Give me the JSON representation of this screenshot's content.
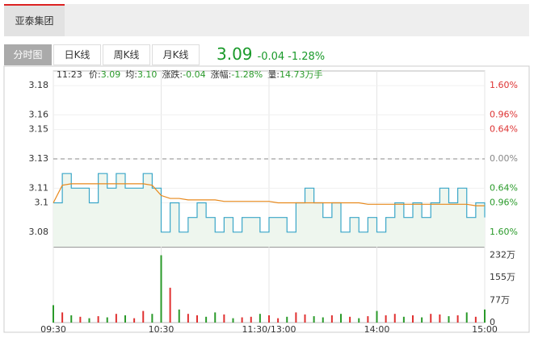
{
  "header": {
    "stock_tab": "亚泰集团",
    "view_tabs": [
      "分时图",
      "日K线",
      "周K线",
      "月K线"
    ],
    "price": "3.09",
    "change": "-0.04",
    "change_pct": "-1.28%"
  },
  "info": {
    "time": "11:23",
    "items": [
      {
        "label": "价:",
        "value": "3.09"
      },
      {
        "label": "均:",
        "value": "3.10"
      },
      {
        "label": "涨跌:",
        "value": "-0.04"
      },
      {
        "label": "涨幅:",
        "value": "-1.28%"
      },
      {
        "label": "量:",
        "value": "14.73万手"
      }
    ]
  },
  "chart_data": [
    {
      "type": "line",
      "xlim": [
        0,
        240
      ],
      "x": [
        0,
        5,
        10,
        15,
        20,
        25,
        30,
        35,
        40,
        45,
        50,
        55,
        60,
        65,
        70,
        75,
        80,
        85,
        90,
        95,
        100,
        105,
        110,
        115,
        120,
        125,
        130,
        135,
        140,
        145,
        150,
        155,
        160,
        165,
        170,
        175,
        180,
        185,
        190,
        195,
        200,
        205,
        210,
        215,
        220,
        225,
        230,
        235,
        240
      ],
      "series": [
        {
          "name": "价",
          "color": "#3aa6c8",
          "values": [
            3.1,
            3.12,
            3.11,
            3.11,
            3.1,
            3.12,
            3.11,
            3.12,
            3.11,
            3.11,
            3.12,
            3.11,
            3.08,
            3.1,
            3.08,
            3.09,
            3.1,
            3.09,
            3.08,
            3.09,
            3.08,
            3.09,
            3.09,
            3.08,
            3.09,
            3.09,
            3.08,
            3.1,
            3.11,
            3.1,
            3.09,
            3.1,
            3.08,
            3.09,
            3.08,
            3.09,
            3.08,
            3.09,
            3.1,
            3.09,
            3.1,
            3.09,
            3.1,
            3.11,
            3.1,
            3.11,
            3.09,
            3.1,
            3.09
          ]
        },
        {
          "name": "均",
          "color": "#e8891c",
          "values": [
            3.1,
            3.112,
            3.113,
            3.113,
            3.113,
            3.113,
            3.113,
            3.113,
            3.113,
            3.113,
            3.113,
            3.112,
            3.105,
            3.103,
            3.103,
            3.102,
            3.102,
            3.102,
            3.102,
            3.101,
            3.101,
            3.101,
            3.101,
            3.101,
            3.101,
            3.1,
            3.1,
            3.1,
            3.1,
            3.1,
            3.1,
            3.1,
            3.1,
            3.1,
            3.1,
            3.099,
            3.099,
            3.099,
            3.099,
            3.099,
            3.099,
            3.099,
            3.099,
            3.099,
            3.099,
            3.099,
            3.099,
            3.098,
            3.098
          ]
        }
      ],
      "ylim": [
        3.07,
        3.19
      ],
      "yticks": [
        3.18,
        3.16,
        3.15,
        3.13,
        3.11,
        3.1,
        3.08
      ],
      "y2lim": [
        -1.917,
        1.917
      ],
      "y2ticks": [
        {
          "value": 1.6,
          "label": "1.60%"
        },
        {
          "value": 0.96,
          "label": "0.96%"
        },
        {
          "value": 0.64,
          "label": "0.64%"
        },
        {
          "value": 0,
          "label": "0.00%"
        },
        {
          "value": -0.64,
          "label": "0.64%"
        },
        {
          "value": -0.96,
          "label": "0.96%"
        },
        {
          "value": -1.6,
          "label": "1.60%"
        }
      ],
      "grid": true
    },
    {
      "type": "bar",
      "xlim": [
        0,
        240
      ],
      "xticks": [
        {
          "value": 0,
          "label": "09:30"
        },
        {
          "value": 60,
          "label": "10:30"
        },
        {
          "value": 120,
          "label": "11:30/13:00"
        },
        {
          "value": 180,
          "label": "14:00"
        },
        {
          "value": 240,
          "label": "15:00"
        }
      ],
      "values": [
        60,
        35,
        25,
        20,
        15,
        22,
        18,
        30,
        25,
        15,
        40,
        30,
        232,
        120,
        45,
        30,
        25,
        20,
        35,
        28,
        15,
        18,
        20,
        30,
        25,
        15,
        20,
        35,
        28,
        22,
        18,
        25,
        30,
        20,
        15,
        22,
        40,
        25,
        30,
        20,
        25,
        18,
        30,
        28,
        22,
        25,
        35,
        20,
        45
      ],
      "up_color": "#e03030",
      "down_color": "#2a9a2a",
      "ylim": [
        0,
        250
      ],
      "yticks": [
        {
          "value": 0,
          "label": "0"
        },
        {
          "value": 77,
          "label": "77万"
        },
        {
          "value": 155,
          "label": "155万"
        },
        {
          "value": 232,
          "label": "232万"
        }
      ]
    }
  ]
}
